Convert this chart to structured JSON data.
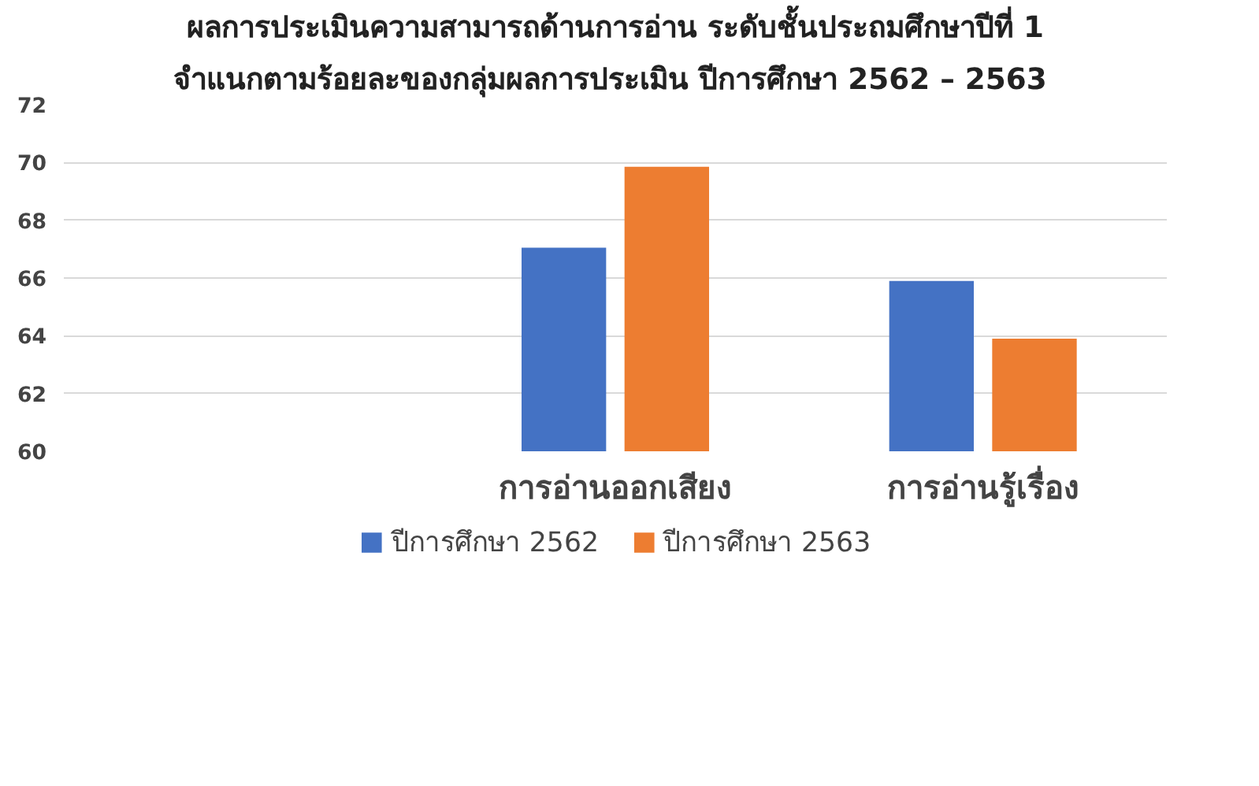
{
  "chart_data": {
    "type": "bar",
    "title": "ผลการประเมินความสามารถด้านการอ่าน ระดับชั้นประถมศึกษาปีที่ 1",
    "subtitle": "จำแนกตามร้อยละของกลุ่มผลการประเมิน  ปีการศึกษา 2562 – 2563",
    "categories": [
      null,
      "การอ่านออกเสียง",
      "การอ่านรู้เรื่อง"
    ],
    "series": [
      {
        "name": "ปีการศึกษา 2562",
        "color": "#4472c4",
        "values": [
          null,
          67.05,
          65.9
        ]
      },
      {
        "name": "ปีการศึกษา 2563",
        "color": "#ed7d31",
        "values": [
          null,
          69.85,
          63.9
        ]
      }
    ],
    "ylim": [
      60,
      72
    ],
    "yticks": [
      60,
      62,
      64,
      66,
      68,
      70,
      72
    ],
    "grid": "y",
    "legend": "bottom"
  }
}
